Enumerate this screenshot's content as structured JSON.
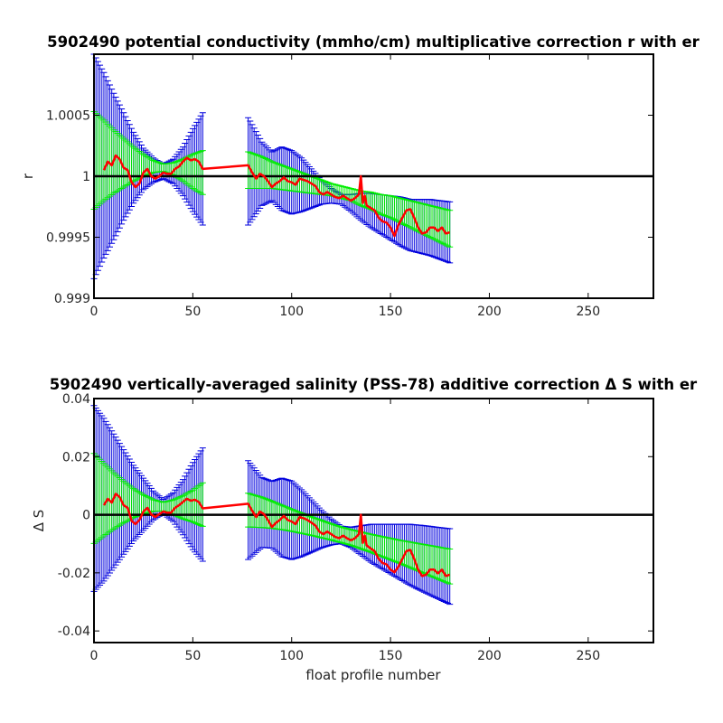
{
  "chart_data": [
    {
      "type": "line",
      "title": "5902490 potential conductivity (mmho/cm) multiplicative correction r with er",
      "xlabel": "",
      "ylabel": "r",
      "xlim": [
        0,
        283
      ],
      "ylim": [
        0.999,
        1.001
      ],
      "x_ticks": [
        0,
        50,
        100,
        150,
        200,
        250
      ],
      "x_tick_labels": [
        "0",
        "50",
        "100",
        "150",
        "200",
        "250"
      ],
      "y_ticks": [
        0.999,
        0.9995,
        1,
        1.0005
      ],
      "y_tick_labels": [
        "0.999",
        "0.9995",
        "1",
        "1.0005"
      ],
      "grid": false,
      "reference_line": 1,
      "series": [
        {
          "role": "correction",
          "color": "#ff0000",
          "x": [
            5,
            7,
            9,
            11,
            13,
            15,
            17,
            19,
            21,
            23,
            25,
            27,
            29,
            31,
            33,
            35,
            37,
            39,
            41,
            43,
            45,
            47,
            49,
            51,
            53,
            55,
            78,
            80,
            82,
            84,
            86,
            88,
            90,
            92,
            94,
            96,
            98,
            100,
            102,
            104,
            106,
            108,
            110,
            112,
            114,
            116,
            118,
            120,
            122,
            124,
            126,
            128,
            130,
            132,
            134,
            135,
            136,
            137,
            138,
            140,
            142,
            144,
            146,
            148,
            150,
            152,
            154,
            156,
            158,
            160,
            162,
            164,
            166,
            168,
            170,
            172,
            174,
            176,
            178,
            180
          ],
          "values": [
            1.00005,
            1.00012,
            1.00009,
            1.00017,
            1.00014,
            1.00007,
            1.00005,
            0.99995,
            0.99991,
            0.99994,
            1.00003,
            1.00006,
            1.0,
            0.99998,
            1.0,
            1.00003,
            1.00002,
            1.00002,
            1.00006,
            1.00008,
            1.00012,
            1.00015,
            1.00013,
            1.00014,
            1.00012,
            1.00006,
            1.00009,
            1.00003,
            0.99998,
            1.00002,
            1.0,
            0.99996,
            0.99991,
            0.99994,
            0.99996,
            0.99999,
            0.99996,
            0.99995,
            0.99993,
            0.99998,
            0.99997,
            0.99996,
            0.99994,
            0.99992,
            0.99987,
            0.99985,
            0.99987,
            0.99985,
            0.99983,
            0.99982,
            0.99984,
            0.99982,
            0.9998,
            0.99982,
            0.99985,
            1.0,
            0.99978,
            0.99984,
            0.99976,
            0.99974,
            0.99972,
            0.99966,
            0.99963,
            0.99962,
            0.99958,
            0.99951,
            0.9996,
            0.99966,
            0.99972,
            0.99973,
            0.99966,
            0.99958,
            0.99953,
            0.99954,
            0.99958,
            0.99958,
            0.99955,
            0.99958,
            0.99953,
            0.99954
          ]
        },
        {
          "role": "error-bars",
          "color": "#0000dd",
          "x": [
            0,
            5,
            10,
            15,
            20,
            25,
            30,
            35,
            40,
            45,
            50,
            55,
            78,
            85,
            90,
            95,
            100,
            105,
            110,
            115,
            120,
            125,
            130,
            135,
            140,
            145,
            150,
            155,
            160,
            165,
            170,
            175,
            180
          ],
          "center": [
            1.00008,
            1.00009,
            1.00008,
            1.00008,
            1.00007,
            1.00006,
            1.00005,
            1.00004,
            1.00004,
            1.00004,
            1.00005,
            1.00006,
            1.00004,
            1.00002,
            1.0,
            0.99998,
            0.99995,
            0.99993,
            0.9999,
            0.99987,
            0.99984,
            0.99981,
            0.99978,
            0.99975,
            0.99972,
            0.99969,
            0.99966,
            0.99963,
            0.9996,
            0.99959,
            0.99958,
            0.99956,
            0.99954
          ],
          "error": [
            0.00092,
            0.00076,
            0.0006,
            0.00044,
            0.00029,
            0.00017,
            0.0001,
            6e-05,
            0.0001,
            0.0002,
            0.00034,
            0.00046,
            0.00044,
            0.00026,
            0.0002,
            0.00026,
            0.00026,
            0.00022,
            0.00016,
            0.0001,
            6e-05,
            4e-05,
            7e-05,
            0.00011,
            0.00014,
            0.00016,
            0.00018,
            0.0002,
            0.00021,
            0.00022,
            0.00023,
            0.00024,
            0.00025
          ]
        },
        {
          "role": "error-bars",
          "color": "#00ee00",
          "x": [
            0,
            5,
            10,
            15,
            20,
            25,
            30,
            35,
            40,
            45,
            50,
            55,
            78,
            85,
            90,
            95,
            100,
            105,
            110,
            115,
            120,
            125,
            130,
            135,
            140,
            145,
            150,
            155,
            160,
            165,
            170,
            175,
            180
          ],
          "center": [
            1.00013,
            1.00013,
            1.00012,
            1.00011,
            1.0001,
            1.00009,
            1.00008,
            1.00007,
            1.00006,
            1.00005,
            1.00004,
            1.00003,
            1.00005,
            1.00003,
            1.00001,
            0.99999,
            0.99997,
            0.99995,
            0.99993,
            0.99991,
            0.99989,
            0.99987,
            0.99985,
            0.99982,
            0.9998,
            0.99977,
            0.99975,
            0.99972,
            0.99969,
            0.99966,
            0.99963,
            0.9996,
            0.99957
          ],
          "error": [
            0.0004,
            0.00033,
            0.00026,
            0.0002,
            0.00014,
            9e-05,
            5e-05,
            3e-05,
            5e-05,
            9e-05,
            0.00014,
            0.00018,
            0.00015,
            0.00013,
            0.00011,
            0.0001,
            9e-05,
            8e-05,
            7e-05,
            6e-05,
            5e-05,
            5e-05,
            5e-05,
            6e-05,
            7e-05,
            8e-05,
            9e-05,
            0.0001,
            0.00011,
            0.00012,
            0.00013,
            0.00014,
            0.00015
          ]
        }
      ]
    },
    {
      "type": "line",
      "title": "5902490 vertically-averaged salinity (PSS-78) additive correction Δ S with er",
      "xlabel": "float profile number",
      "ylabel": "Δ S",
      "xlim": [
        0,
        283
      ],
      "ylim": [
        -0.044,
        0.04
      ],
      "x_ticks": [
        0,
        50,
        100,
        150,
        200,
        250
      ],
      "x_tick_labels": [
        "0",
        "50",
        "100",
        "150",
        "200",
        "250"
      ],
      "y_ticks": [
        -0.04,
        -0.02,
        0,
        0.02,
        0.04
      ],
      "y_tick_labels": [
        "-0.04",
        "-0.02",
        "0",
        "0.02",
        "0.04"
      ],
      "grid": false,
      "reference_line": 0,
      "series": [
        {
          "role": "correction",
          "color": "#ff0000",
          "x": [
            5,
            7,
            9,
            11,
            13,
            15,
            17,
            19,
            21,
            23,
            25,
            27,
            29,
            31,
            33,
            35,
            37,
            39,
            41,
            43,
            45,
            47,
            49,
            51,
            53,
            55,
            78,
            80,
            82,
            84,
            86,
            88,
            90,
            92,
            94,
            96,
            98,
            100,
            102,
            104,
            106,
            108,
            110,
            112,
            114,
            116,
            118,
            120,
            122,
            124,
            126,
            128,
            130,
            132,
            134,
            135,
            136,
            137,
            138,
            140,
            142,
            144,
            146,
            148,
            150,
            152,
            154,
            156,
            158,
            160,
            162,
            164,
            166,
            168,
            170,
            172,
            174,
            176,
            178,
            180
          ],
          "values": [
            0.0033,
            0.0055,
            0.0042,
            0.0072,
            0.0061,
            0.0033,
            0.0024,
            -0.0021,
            -0.0032,
            -0.0018,
            0.0011,
            0.0024,
            0.0001,
            -0.0008,
            0.0002,
            0.0011,
            0.0007,
            0.0007,
            0.0024,
            0.0033,
            0.0044,
            0.0055,
            0.0048,
            0.0052,
            0.0044,
            0.0022,
            0.0038,
            0.0014,
            -0.0008,
            0.0011,
            0.0002,
            -0.0018,
            -0.0042,
            -0.0028,
            -0.0018,
            -0.0004,
            -0.0018,
            -0.0023,
            -0.0032,
            -0.0008,
            -0.0012,
            -0.0018,
            -0.0027,
            -0.0037,
            -0.0058,
            -0.0067,
            -0.0058,
            -0.0067,
            -0.0076,
            -0.0081,
            -0.0072,
            -0.0081,
            -0.0088,
            -0.0081,
            -0.0067,
            0.0,
            -0.0097,
            -0.0072,
            -0.0106,
            -0.0116,
            -0.0125,
            -0.0152,
            -0.0166,
            -0.0171,
            -0.0189,
            -0.0198,
            -0.0179,
            -0.0152,
            -0.0125,
            -0.0121,
            -0.0152,
            -0.0189,
            -0.0211,
            -0.0206,
            -0.0189,
            -0.0189,
            -0.0202,
            -0.0189,
            -0.0211,
            -0.0206
          ]
        },
        {
          "role": "error-bars",
          "color": "#0000dd",
          "x": [
            0,
            5,
            10,
            15,
            20,
            25,
            30,
            35,
            40,
            45,
            50,
            55,
            78,
            85,
            90,
            95,
            100,
            105,
            110,
            115,
            120,
            125,
            130,
            135,
            140,
            145,
            150,
            155,
            160,
            165,
            170,
            175,
            180
          ],
          "center": [
            0.0056,
            0.0052,
            0.0048,
            0.0044,
            0.004,
            0.0036,
            0.0032,
            0.0028,
            0.0026,
            0.0026,
            0.003,
            0.0035,
            0.0016,
            0.0008,
            0.0,
            -0.0009,
            -0.0019,
            -0.0029,
            -0.0039,
            -0.0049,
            -0.0059,
            -0.0069,
            -0.0078,
            -0.0088,
            -0.0098,
            -0.0108,
            -0.0118,
            -0.0128,
            -0.0138,
            -0.0148,
            -0.0158,
            -0.0168,
            -0.0178
          ],
          "error": [
            0.032,
            0.028,
            0.023,
            0.018,
            0.013,
            0.009,
            0.005,
            0.0025,
            0.005,
            0.0095,
            0.015,
            0.0195,
            0.017,
            0.012,
            0.0115,
            0.0135,
            0.0135,
            0.0115,
            0.009,
            0.0065,
            0.0045,
            0.003,
            0.0035,
            0.005,
            0.0065,
            0.0075,
            0.0085,
            0.0095,
            0.0105,
            0.0112,
            0.0118,
            0.0124,
            0.013
          ]
        },
        {
          "role": "error-bars",
          "color": "#00ee00",
          "x": [
            0,
            5,
            10,
            15,
            20,
            25,
            30,
            35,
            40,
            45,
            50,
            55,
            78,
            85,
            90,
            95,
            100,
            105,
            110,
            115,
            120,
            125,
            130,
            135,
            140,
            145,
            150,
            155,
            160,
            165,
            170,
            175,
            180
          ],
          "center": [
            0.0056,
            0.0052,
            0.0048,
            0.0044,
            0.004,
            0.0036,
            0.0032,
            0.0028,
            0.0026,
            0.0026,
            0.003,
            0.0035,
            0.0016,
            0.0008,
            0.0,
            -0.0009,
            -0.0019,
            -0.0029,
            -0.0039,
            -0.0049,
            -0.0059,
            -0.0069,
            -0.0078,
            -0.0088,
            -0.0098,
            -0.0108,
            -0.0118,
            -0.0128,
            -0.0138,
            -0.0148,
            -0.0158,
            -0.0168,
            -0.0178
          ],
          "error": [
            0.0155,
            0.0125,
            0.0097,
            0.0072,
            0.005,
            0.0033,
            0.002,
            0.0015,
            0.0025,
            0.004,
            0.0055,
            0.0075,
            0.0058,
            0.0052,
            0.0047,
            0.0042,
            0.0038,
            0.0035,
            0.0032,
            0.003,
            0.0028,
            0.0027,
            0.0027,
            0.0029,
            0.0031,
            0.0034,
            0.0037,
            0.004,
            0.0044,
            0.0048,
            0.0052,
            0.0056,
            0.006
          ]
        }
      ]
    }
  ]
}
